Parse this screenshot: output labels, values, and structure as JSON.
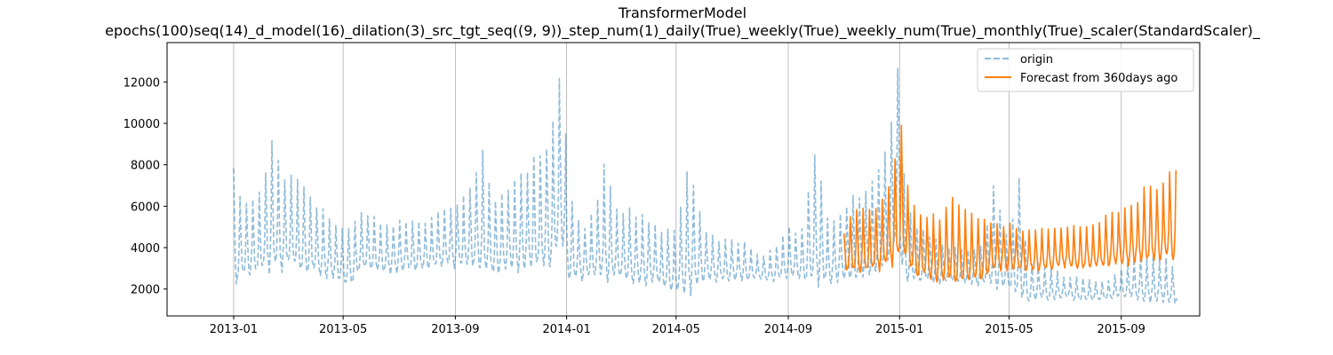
{
  "chart_data": {
    "type": "line",
    "title": "TransformerModel",
    "subtitle": "epochs(100)seq(14)_d_model(16)_dilation(3)_src_tgt_seq((9, 9))_step_num(1)_daily(True)_weekly(True)_weekly_num(True)_monthly(True)_scaler(StandardScaler)_",
    "xlabel": "",
    "ylabel": "",
    "x_axis": {
      "type": "date",
      "range": [
        "2012-10-20",
        "2015-11-26"
      ],
      "ticks": [
        "2013-01-01",
        "2013-05-01",
        "2013-09-01",
        "2014-01-01",
        "2014-05-01",
        "2014-09-01",
        "2015-01-01",
        "2015-05-01",
        "2015-09-01"
      ],
      "tick_labels": [
        "2013-01",
        "2013-05",
        "2013-09",
        "2014-01",
        "2014-05",
        "2014-09",
        "2015-01",
        "2015-05",
        "2015-09"
      ]
    },
    "y_axis": {
      "range": [
        700,
        13900
      ],
      "ticks": [
        2000,
        4000,
        6000,
        8000,
        10000,
        12000
      ],
      "tick_labels": [
        "2000",
        "4000",
        "6000",
        "8000",
        "10000",
        "12000"
      ]
    },
    "grid": "x-only",
    "legend_position": "top-right",
    "colors": {
      "origin": "#1f77b4",
      "forecast": "#ff7f0e"
    },
    "series": [
      {
        "name": "origin",
        "style": "dashed",
        "opacity": 0.5,
        "x": [
          "2013-01-01",
          "2013-01-10",
          "2013-01-20",
          "2013-02-01",
          "2013-02-15",
          "2013-02-22",
          "2013-03-01",
          "2013-03-15",
          "2013-04-01",
          "2013-04-15",
          "2013-05-01",
          "2013-05-10",
          "2013-05-20",
          "2013-06-01",
          "2013-06-15",
          "2013-07-01",
          "2013-07-15",
          "2013-08-01",
          "2013-08-15",
          "2013-09-01",
          "2013-09-15",
          "2013-10-01",
          "2013-10-15",
          "2013-11-01",
          "2013-11-15",
          "2013-12-01",
          "2013-12-15",
          "2013-12-29",
          "2014-01-01",
          "2014-01-10",
          "2014-01-20",
          "2014-02-01",
          "2014-02-15",
          "2014-02-20",
          "2014-03-01",
          "2014-03-15",
          "2014-04-01",
          "2014-04-15",
          "2014-05-01",
          "2014-05-15",
          "2014-06-01",
          "2014-06-15",
          "2014-07-01",
          "2014-07-15",
          "2014-08-01",
          "2014-08-15",
          "2014-09-01",
          "2014-09-15",
          "2014-10-01",
          "2014-10-15",
          "2014-11-01",
          "2014-11-15",
          "2014-12-01",
          "2014-12-15",
          "2014-12-25",
          "2014-12-31",
          "2015-01-05",
          "2015-01-15",
          "2015-02-01",
          "2015-02-15",
          "2015-03-01",
          "2015-03-15",
          "2015-04-01",
          "2015-04-15",
          "2015-05-01",
          "2015-05-15",
          "2015-05-20",
          "2015-06-01",
          "2015-06-15",
          "2015-07-01",
          "2015-07-15",
          "2015-08-01",
          "2015-08-15",
          "2015-09-01",
          "2015-09-15",
          "2015-10-01",
          "2015-10-15",
          "2015-11-01"
        ],
        "peaks": [
          8200,
          6000,
          6200,
          6800,
          9400,
          7000,
          7600,
          7200,
          6000,
          5500,
          4900,
          5000,
          5700,
          5600,
          5100,
          5200,
          5300,
          5200,
          5700,
          6000,
          6800,
          8400,
          6300,
          7000,
          7600,
          8600,
          9400,
          13300,
          8200,
          5600,
          5000,
          5800,
          8500,
          5900,
          5800,
          5700,
          5300,
          4800,
          4700,
          8200,
          4800,
          4400,
          4300,
          4200,
          3500,
          3900,
          4900,
          4700,
          8700,
          5100,
          6000,
          6500,
          7000,
          8300,
          10500,
          13300,
          7600,
          5200,
          4700,
          4200,
          4000,
          3900,
          4000,
          7000,
          4000,
          8500,
          3300,
          3200,
          3100,
          2600,
          2600,
          2400,
          2300,
          2900,
          3600,
          3500,
          3600,
          3000
        ],
        "troughs": [
          2000,
          2800,
          2800,
          3000,
          3000,
          3000,
          3200,
          3000,
          2800,
          2600,
          2400,
          2200,
          3000,
          3000,
          2800,
          2900,
          2900,
          3000,
          3200,
          3100,
          3200,
          3000,
          2700,
          3000,
          3000,
          3200,
          3200,
          4500,
          2300,
          2500,
          2500,
          2600,
          2600,
          2600,
          2500,
          2400,
          2300,
          2200,
          1900,
          1900,
          2500,
          2400,
          2500,
          2500,
          2500,
          2400,
          2600,
          2500,
          2400,
          2400,
          2500,
          2500,
          2800,
          3000,
          4000,
          5500,
          2200,
          2500,
          2400,
          2300,
          2400,
          2300,
          2200,
          2200,
          2000,
          1500,
          1400,
          1600,
          1500,
          1600,
          1500,
          1500,
          1500,
          1700,
          1600,
          1400,
          1500,
          1300
        ]
      },
      {
        "name": "Forecast from 360days ago",
        "style": "solid",
        "x": [
          "2014-11-01",
          "2014-11-10",
          "2014-11-20",
          "2014-12-01",
          "2014-12-10",
          "2014-12-20",
          "2014-12-28",
          "2015-01-03",
          "2015-01-10",
          "2015-01-20",
          "2015-02-01",
          "2015-02-15",
          "2015-02-25",
          "2015-03-01",
          "2015-03-15",
          "2015-04-01",
          "2015-04-15",
          "2015-05-01",
          "2015-05-15",
          "2015-06-01",
          "2015-06-15",
          "2015-07-01",
          "2015-07-15",
          "2015-08-01",
          "2015-08-15",
          "2015-09-01",
          "2015-09-15",
          "2015-10-01",
          "2015-10-15",
          "2015-10-31"
        ],
        "peaks": [
          4800,
          5700,
          5900,
          5800,
          5900,
          6800,
          8600,
          9900,
          7000,
          5600,
          5500,
          5400,
          6600,
          6400,
          5800,
          5400,
          5200,
          5100,
          4800,
          4900,
          4800,
          5000,
          5100,
          5000,
          5600,
          5800,
          6000,
          7200,
          6900,
          8000
        ],
        "troughs": [
          2900,
          3000,
          2900,
          3000,
          3000,
          3200,
          3400,
          3600,
          3300,
          2700,
          2600,
          2400,
          2500,
          2400,
          2400,
          2500,
          3000,
          3000,
          2900,
          2900,
          3000,
          3100,
          3000,
          3100,
          3100,
          3200,
          3300,
          3400,
          3500,
          3600
        ]
      }
    ]
  }
}
